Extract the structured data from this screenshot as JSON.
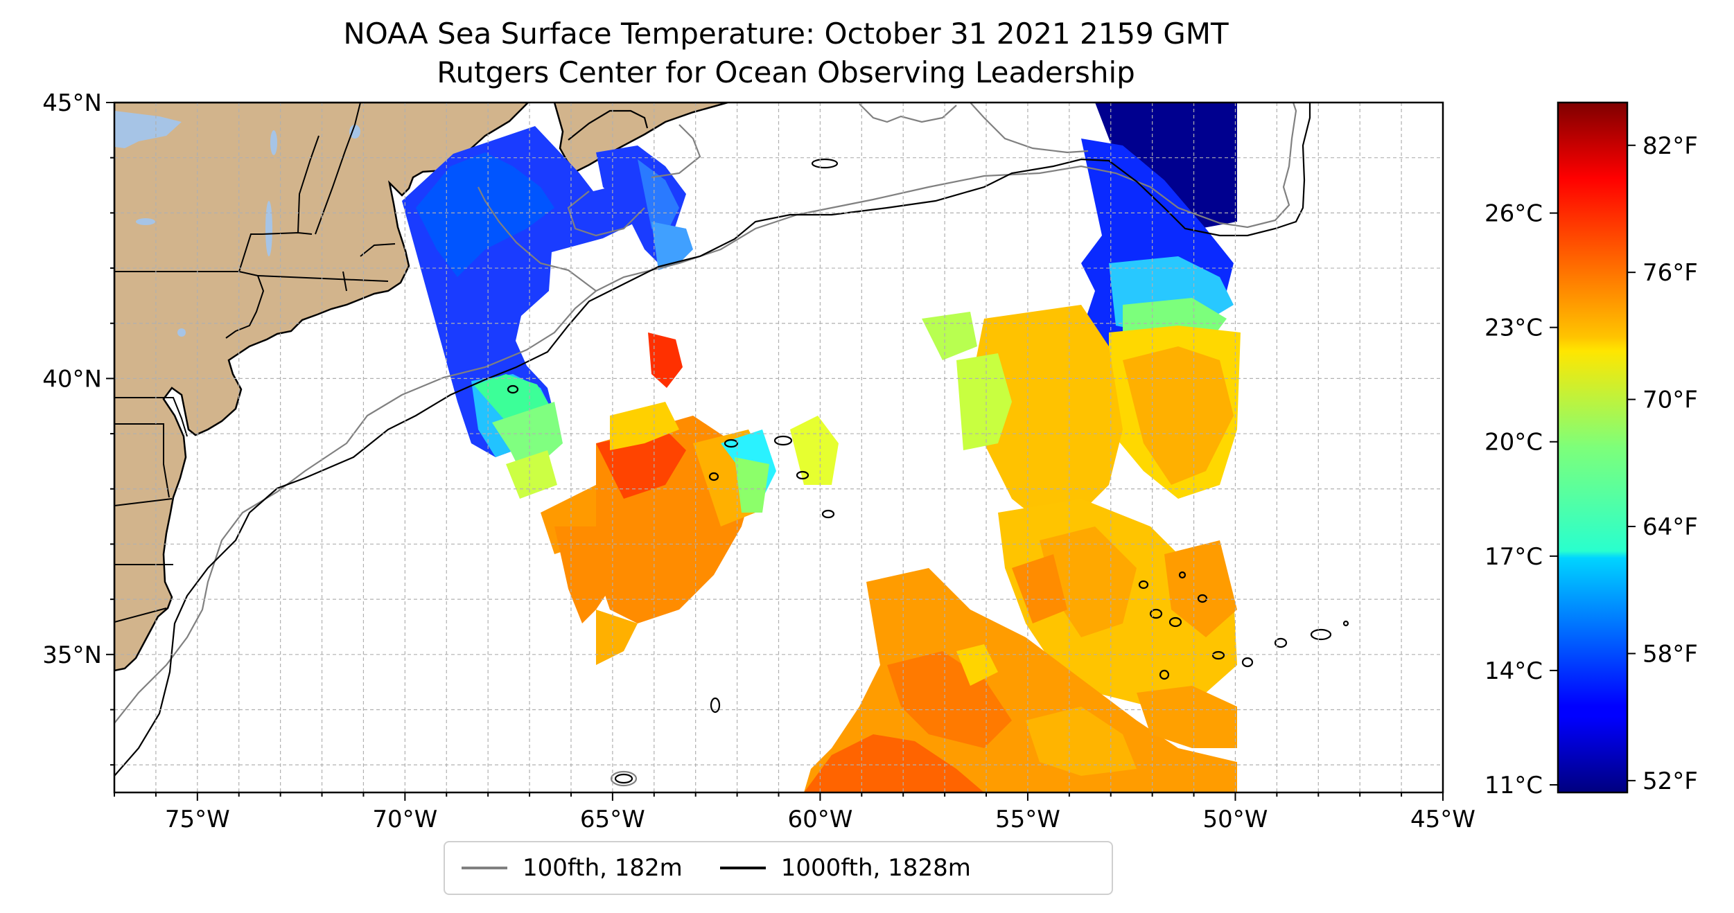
{
  "title": {
    "line1": "NOAA Sea Surface Temperature: October 31 2021 2159 GMT",
    "line2": "Rutgers Center for Ocean Observing Leadership"
  },
  "map": {
    "lon_range": [
      -77,
      -45
    ],
    "lat_range": [
      32.5,
      45
    ],
    "lon_ticks": [
      -75,
      -70,
      -65,
      -60,
      -55,
      -50,
      -45
    ],
    "lon_tick_labels": [
      "75°W",
      "70°W",
      "65°W",
      "60°W",
      "55°W",
      "50°W",
      "45°W"
    ],
    "lat_ticks": [
      35,
      40,
      45
    ],
    "lat_tick_labels": [
      "35°N",
      "40°N",
      "45°N"
    ],
    "grid": true,
    "colors": {
      "land": "#d2b48c",
      "lakes": "#a6c4e6",
      "contour_100fth": "#808080",
      "contour_1000fth": "#000000"
    }
  },
  "colorbar": {
    "colormap": "jet",
    "celsius_range": [
      10.8,
      28.9
    ],
    "celsius_ticks": [
      11,
      14,
      17,
      20,
      23,
      26
    ],
    "celsius_labels": [
      "11°C",
      "14°C",
      "17°C",
      "20°C",
      "23°C",
      "26°C"
    ],
    "fahrenheit_ticks": [
      52,
      58,
      64,
      70,
      76,
      82
    ],
    "fahrenheit_labels": [
      "52°F",
      "58°F",
      "64°F",
      "70°F",
      "76°F",
      "82°F"
    ]
  },
  "legend": {
    "entries": [
      {
        "label": "100fth, 182m",
        "color": "#808080"
      },
      {
        "label": "1000fth, 1828m",
        "color": "#000000"
      }
    ],
    "placement": "bottom-center"
  }
}
